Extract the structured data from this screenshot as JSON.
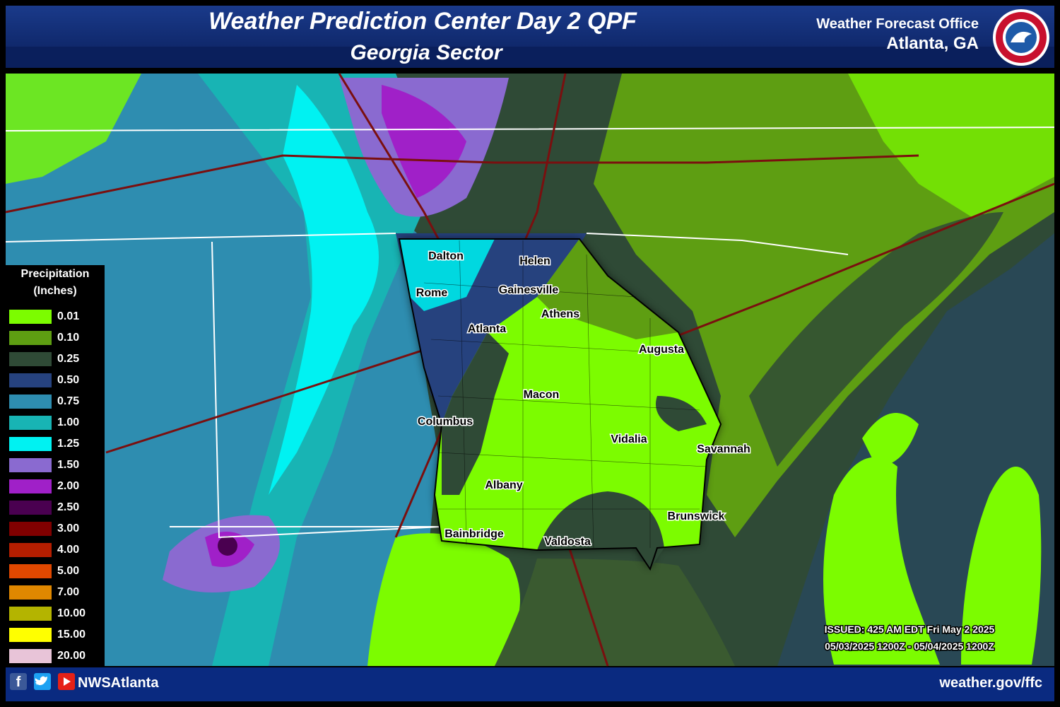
{
  "header": {
    "title": "Weather Prediction Center Day 2 QPF",
    "subtitle": "Georgia Sector",
    "office": "Weather Forecast Office",
    "location": "Atlanta, GA"
  },
  "legend": {
    "title": [
      "Precipitation",
      "(Inches)"
    ],
    "items": [
      {
        "label": "0.01",
        "color": "#7cfc00"
      },
      {
        "label": "0.10",
        "color": "#5e9e12"
      },
      {
        "label": "0.25",
        "color": "#2f4a36"
      },
      {
        "label": "0.50",
        "color": "#26427e"
      },
      {
        "label": "0.75",
        "color": "#2e8db0"
      },
      {
        "label": "1.00",
        "color": "#18b4b4"
      },
      {
        "label": "1.25",
        "color": "#00f2f2"
      },
      {
        "label": "1.50",
        "color": "#8a6ad0"
      },
      {
        "label": "2.00",
        "color": "#a020c8"
      },
      {
        "label": "2.50",
        "color": "#4a0050"
      },
      {
        "label": "3.00",
        "color": "#800000"
      },
      {
        "label": "4.00",
        "color": "#b41e00"
      },
      {
        "label": "5.00",
        "color": "#e04800"
      },
      {
        "label": "7.00",
        "color": "#e08800"
      },
      {
        "label": "10.00",
        "color": "#b4b400"
      },
      {
        "label": "15.00",
        "color": "#ffff00"
      },
      {
        "label": "20.00",
        "color": "#e8c4d8"
      }
    ]
  },
  "cities": [
    "Dalton",
    "Helen",
    "Rome",
    "Gainesville",
    "Athens",
    "Atlanta",
    "Augusta",
    "Macon",
    "Columbus",
    "Vidalia",
    "Savannah",
    "Albany",
    "Brunswick",
    "Bainbridge",
    "Valdosta"
  ],
  "issued": "ISSUED: 425 AM EDT Fri May 2 2025",
  "valid": "05/03/2025 1200Z - 05/04/2025 1200Z",
  "footer": {
    "social": "NWSAtlanta",
    "url": "weather.gov/ffc"
  }
}
